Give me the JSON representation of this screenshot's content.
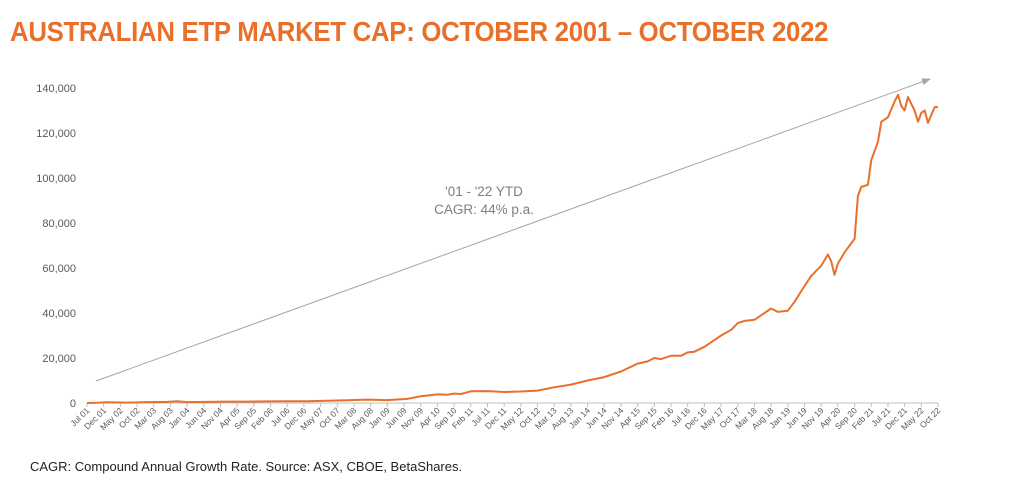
{
  "title": "AUSTRALIAN ETP MARKET CAP: OCTOBER 2001 – OCTOBER 2022",
  "footnote": "CAGR: Compound Annual Growth Rate. Source: ASX, CBOE, BetaShares.",
  "colors": {
    "title": "#E8702A",
    "line": "#E8702A",
    "trend": "#A6A6A6",
    "axis": "#BFBFBF",
    "text": "#595959"
  },
  "chart_data": {
    "type": "line",
    "title": "AUSTRALIAN ETP MARKET CAP: OCTOBER 2001 – OCTOBER 2022",
    "ylim": [
      0,
      140000
    ],
    "yticks": [
      "0",
      "20,000",
      "40,000",
      "60,000",
      "80,000",
      "100,000",
      "120,000",
      "140,000"
    ],
    "xticks": [
      "Jul 01",
      "Dec 01",
      "May 02",
      "Oct 02",
      "Mar 03",
      "Aug 03",
      "Jan 04",
      "Jun 04",
      "Nov 04",
      "Apr 05",
      "Sep 05",
      "Feb 06",
      "Jul 06",
      "Dec 06",
      "May 07",
      "Oct 07",
      "Mar 08",
      "Aug 08",
      "Jan 09",
      "Jun 09",
      "Nov 09",
      "Apr 10",
      "Sep 10",
      "Feb 11",
      "Jul 11",
      "Dec 11",
      "May 12",
      "Oct 12",
      "Mar 13",
      "Aug 13",
      "Jan 14",
      "Jun 14",
      "Nov 14",
      "Apr 15",
      "Sep 15",
      "Feb 16",
      "Jul 16",
      "Dec 16",
      "May 17",
      "Oct 17",
      "Mar 18",
      "Aug 18",
      "Jan 19",
      "Jun 19",
      "Nov 19",
      "Apr 20",
      "Sep 20",
      "Feb 21",
      "Jul 21",
      "Dec 21",
      "May 22",
      "Oct 22"
    ],
    "grid": false,
    "legend": "none",
    "series": [
      {
        "x": [
          "Jul 01",
          "Oct 01",
          "Jan 02",
          "Jul 02",
          "Jan 03",
          "Jul 03",
          "Oct 03",
          "Jan 04",
          "Jul 04",
          "Jan 05",
          "Jul 05",
          "Jan 06",
          "Jul 06",
          "Jan 07",
          "Jul 07",
          "Jan 08",
          "Jul 08",
          "Jan 09",
          "Jul 09",
          "Nov 09",
          "Apr 10",
          "Jul 10",
          "Sep 10",
          "Nov 10",
          "Feb 11",
          "Jul 11",
          "Dec 11",
          "May 12",
          "Oct 12",
          "Mar 13",
          "Aug 13",
          "Jan 14",
          "Jun 14",
          "Nov 14",
          "Apr 15",
          "Jul 15",
          "Sep 15",
          "Nov 15",
          "Feb 16",
          "May 16",
          "Jul 16",
          "Sep 16",
          "Dec 16",
          "Feb 17",
          "May 17",
          "Aug 17",
          "Oct 17",
          "Dec 17",
          "Mar 18",
          "May 18",
          "Aug 18",
          "Oct 18",
          "Jan 19",
          "Mar 19",
          "Jun 19",
          "Aug 19",
          "Nov 19",
          "Jan 20",
          "Feb 20",
          "Mar 20",
          "Apr 20",
          "Jun 20",
          "Aug 20",
          "Sep 20",
          "Oct 20",
          "Nov 20",
          "Jan 21",
          "Feb 21",
          "Apr 21",
          "May 21",
          "Jul 21",
          "Sep 21",
          "Oct 21",
          "Nov 21",
          "Dec 21",
          "Jan 22",
          "Feb 22",
          "Mar 22",
          "Apr 22",
          "May 22",
          "Jun 22",
          "Jul 22",
          "Aug 22",
          "Sep 22",
          "Oct 22"
        ],
        "values": [
          0,
          100,
          300,
          200,
          400,
          500,
          800,
          400,
          500,
          600,
          600,
          700,
          800,
          800,
          1000,
          1200,
          1500,
          1300,
          1800,
          3000,
          3800,
          3700,
          4200,
          4000,
          5200,
          5300,
          4900,
          5100,
          5500,
          7000,
          8200,
          10000,
          11500,
          14000,
          17500,
          18500,
          20000,
          19500,
          21000,
          21000,
          22500,
          22800,
          25000,
          27000,
          30000,
          32500,
          35500,
          36500,
          37000,
          39000,
          42000,
          40500,
          41000,
          45000,
          52000,
          56500,
          61000,
          66000,
          63000,
          57000,
          62000,
          67000,
          71000,
          73000,
          92000,
          96000,
          97000,
          108000,
          116000,
          125000,
          127000,
          134000,
          137000,
          132000,
          130000,
          136000,
          133000,
          130000,
          125000,
          129000,
          130000,
          124500,
          128000,
          131500,
          131500
        ]
      }
    ],
    "annotations": [
      "'01 - '22 YTD",
      "CAGR: 44% p.a."
    ]
  }
}
